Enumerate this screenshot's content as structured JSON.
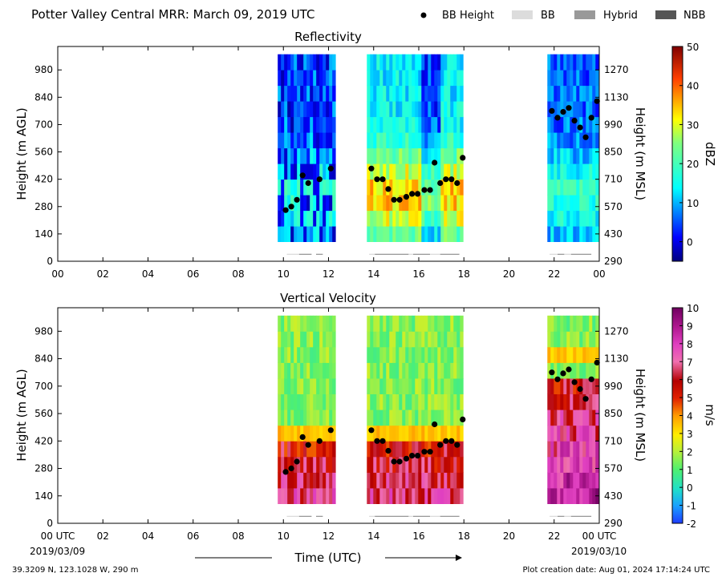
{
  "header": {
    "title": "Potter Valley Central MRR:  March 09, 2019 UTC",
    "legend": [
      {
        "label": "BB Height",
        "kind": "dot",
        "color": "#000000"
      },
      {
        "label": "BB",
        "kind": "box",
        "color": "#dcdcdc"
      },
      {
        "label": "Hybrid",
        "kind": "box",
        "color": "#999999"
      },
      {
        "label": "NBB",
        "kind": "box",
        "color": "#555555"
      }
    ]
  },
  "footer": {
    "location": "39.3209 N, 123.1028 W, 290 m",
    "creation": "Plot creation date: Aug 01, 2024 17:14:24 UTC",
    "start_date": "2019/03/09",
    "end_date": "2019/03/10",
    "xlabel": "Time (UTC)"
  },
  "chart_data": [
    {
      "type": "heatmap",
      "title": "Reflectivity",
      "ylabel": "Height (m AGL)",
      "y2label": "Height (m MSL)",
      "xlim": [
        0,
        24
      ],
      "ylim": [
        0,
        1100
      ],
      "x_ticks": [
        "00",
        "02",
        "04",
        "06",
        "08",
        "10",
        "12",
        "14",
        "16",
        "18",
        "20",
        "22",
        "00"
      ],
      "y_ticks": [
        0,
        140,
        280,
        420,
        560,
        700,
        840,
        980
      ],
      "y2_ticks": [
        290,
        430,
        570,
        710,
        850,
        990,
        1130,
        1270
      ],
      "colorbar": {
        "label": "dBZ",
        "range": [
          -5,
          50
        ],
        "ticks": [
          0,
          10,
          20,
          30,
          40,
          50
        ],
        "colormap": "jet"
      },
      "data_segments": [
        [
          9.75,
          12.3
        ],
        [
          13.7,
          17.85
        ],
        [
          21.7,
          23.95
        ]
      ],
      "bb_height": {
        "times": [
          10.1,
          10.35,
          10.6,
          10.85,
          11.1,
          11.6,
          12.1,
          13.9,
          14.15,
          14.4,
          14.65,
          14.9,
          15.15,
          15.45,
          15.7,
          15.95,
          16.25,
          16.5,
          16.7,
          16.95,
          17.2,
          17.45,
          17.7,
          17.95,
          21.9,
          22.15,
          22.4,
          22.65,
          22.9,
          23.15,
          23.4,
          23.65,
          23.9
        ],
        "heights": [
          262,
          280,
          315,
          440,
          400,
          420,
          475,
          475,
          420,
          420,
          370,
          315,
          315,
          330,
          345,
          345,
          365,
          365,
          505,
          400,
          420,
          420,
          400,
          530,
          770,
          735,
          765,
          785,
          720,
          685,
          635,
          735,
          820
        ]
      },
      "bb_type": [
        {
          "start": 10.15,
          "end": 10.7,
          "type": "BB"
        },
        {
          "start": 10.7,
          "end": 11.25,
          "type": "Hybrid"
        },
        {
          "start": 11.45,
          "end": 11.75,
          "type": "Hybrid"
        },
        {
          "start": 13.8,
          "end": 14.05,
          "type": "BB"
        },
        {
          "start": 14.05,
          "end": 15.55,
          "type": "Hybrid"
        },
        {
          "start": 15.55,
          "end": 15.75,
          "type": "BB"
        },
        {
          "start": 15.75,
          "end": 16.5,
          "type": "Hybrid"
        },
        {
          "start": 16.5,
          "end": 16.95,
          "type": "BB"
        },
        {
          "start": 16.95,
          "end": 17.8,
          "type": "Hybrid"
        },
        {
          "start": 21.8,
          "end": 22.15,
          "type": "BB"
        },
        {
          "start": 22.15,
          "end": 22.45,
          "type": "Hybrid"
        },
        {
          "start": 22.45,
          "end": 22.75,
          "type": "BB"
        },
        {
          "start": 22.75,
          "end": 23.65,
          "type": "Hybrid"
        }
      ]
    },
    {
      "type": "heatmap",
      "title": "Vertical Velocity",
      "ylabel": "Height (m AGL)",
      "y2label": "Height (m MSL)",
      "xlim": [
        0,
        24
      ],
      "ylim": [
        0,
        1100
      ],
      "x_ticks": [
        "00 UTC",
        "02",
        "04",
        "06",
        "08",
        "10",
        "12",
        "14",
        "16",
        "18",
        "20",
        "22",
        "00 UTC"
      ],
      "y_ticks": [
        0,
        140,
        280,
        420,
        560,
        700,
        840,
        980
      ],
      "y2_ticks": [
        290,
        430,
        570,
        710,
        850,
        990,
        1130,
        1270
      ],
      "colorbar": {
        "label": "m/s",
        "range": [
          -2,
          10
        ],
        "ticks": [
          -2,
          -1,
          0,
          1,
          2,
          3,
          4,
          5,
          6,
          7,
          8,
          9,
          10
        ],
        "colormap": "velocity"
      },
      "data_segments": [
        [
          9.75,
          12.3
        ],
        [
          13.7,
          17.85
        ],
        [
          21.7,
          23.95
        ]
      ],
      "bb_height": {
        "times": [
          10.1,
          10.35,
          10.6,
          10.85,
          11.1,
          11.6,
          12.1,
          13.9,
          14.15,
          14.4,
          14.65,
          14.9,
          15.15,
          15.45,
          15.7,
          15.95,
          16.25,
          16.5,
          16.7,
          16.95,
          17.2,
          17.45,
          17.7,
          17.95,
          21.9,
          22.15,
          22.4,
          22.65,
          22.9,
          23.15,
          23.4,
          23.65,
          23.9
        ],
        "heights": [
          262,
          280,
          315,
          440,
          400,
          420,
          475,
          475,
          420,
          420,
          370,
          315,
          315,
          330,
          345,
          345,
          365,
          365,
          505,
          400,
          420,
          420,
          400,
          530,
          770,
          735,
          765,
          785,
          720,
          685,
          635,
          735,
          820
        ]
      },
      "bb_type": [
        {
          "start": 10.15,
          "end": 10.7,
          "type": "BB"
        },
        {
          "start": 10.7,
          "end": 11.25,
          "type": "Hybrid"
        },
        {
          "start": 11.45,
          "end": 11.75,
          "type": "Hybrid"
        },
        {
          "start": 13.8,
          "end": 14.05,
          "type": "BB"
        },
        {
          "start": 14.05,
          "end": 15.55,
          "type": "Hybrid"
        },
        {
          "start": 15.55,
          "end": 15.75,
          "type": "BB"
        },
        {
          "start": 15.75,
          "end": 16.5,
          "type": "Hybrid"
        },
        {
          "start": 16.5,
          "end": 16.95,
          "type": "BB"
        },
        {
          "start": 16.95,
          "end": 17.8,
          "type": "Hybrid"
        },
        {
          "start": 21.8,
          "end": 22.15,
          "type": "BB"
        },
        {
          "start": 22.15,
          "end": 22.45,
          "type": "Hybrid"
        },
        {
          "start": 22.45,
          "end": 22.75,
          "type": "BB"
        },
        {
          "start": 22.75,
          "end": 23.65,
          "type": "Hybrid"
        }
      ]
    }
  ]
}
